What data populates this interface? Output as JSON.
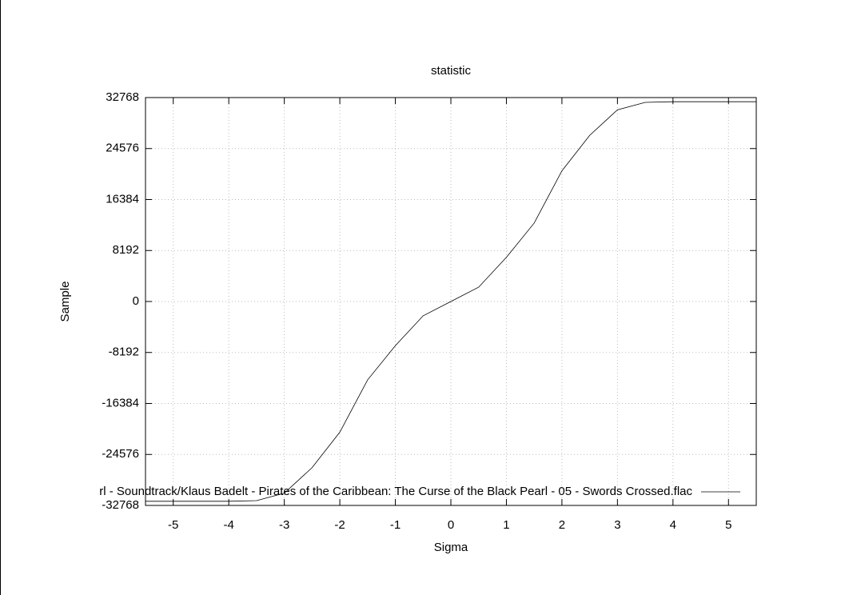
{
  "chart_data": {
    "type": "line",
    "title": "statistic",
    "x_label": "Sigma",
    "y_label": "Sample",
    "x": [
      -5.5,
      -4,
      -3.5,
      -3,
      -2.5,
      -2,
      -1.5,
      -1,
      -0.5,
      0,
      0.5,
      1,
      1.5,
      2,
      2.5,
      3,
      3.5,
      4,
      5.5
    ],
    "series": [
      {
        "name": "rl - Soundtrack/Klaus Badelt - Pirates of the Caribbean: The Curse of the Black Pearl - 05 - Swords Crossed.flac",
        "color": "#000000",
        "values": [
          -32100,
          -32100,
          -32000,
          -30800,
          -26700,
          -21000,
          -12600,
          -7100,
          -2300,
          0,
          2300,
          7100,
          12600,
          21000,
          26700,
          30800,
          32000,
          32100,
          32100
        ]
      }
    ],
    "xlim": [
      -5.5,
      5.5
    ],
    "xticks": [
      -5,
      -4,
      -3,
      -2,
      -1,
      0,
      1,
      2,
      3,
      4,
      5
    ],
    "ylim": [
      -32768,
      32768
    ],
    "yticks": [
      -32768,
      -24576,
      -16384,
      -8192,
      0,
      8192,
      16384,
      24576,
      32768
    ],
    "grid": true,
    "legend": "bottom-right"
  }
}
